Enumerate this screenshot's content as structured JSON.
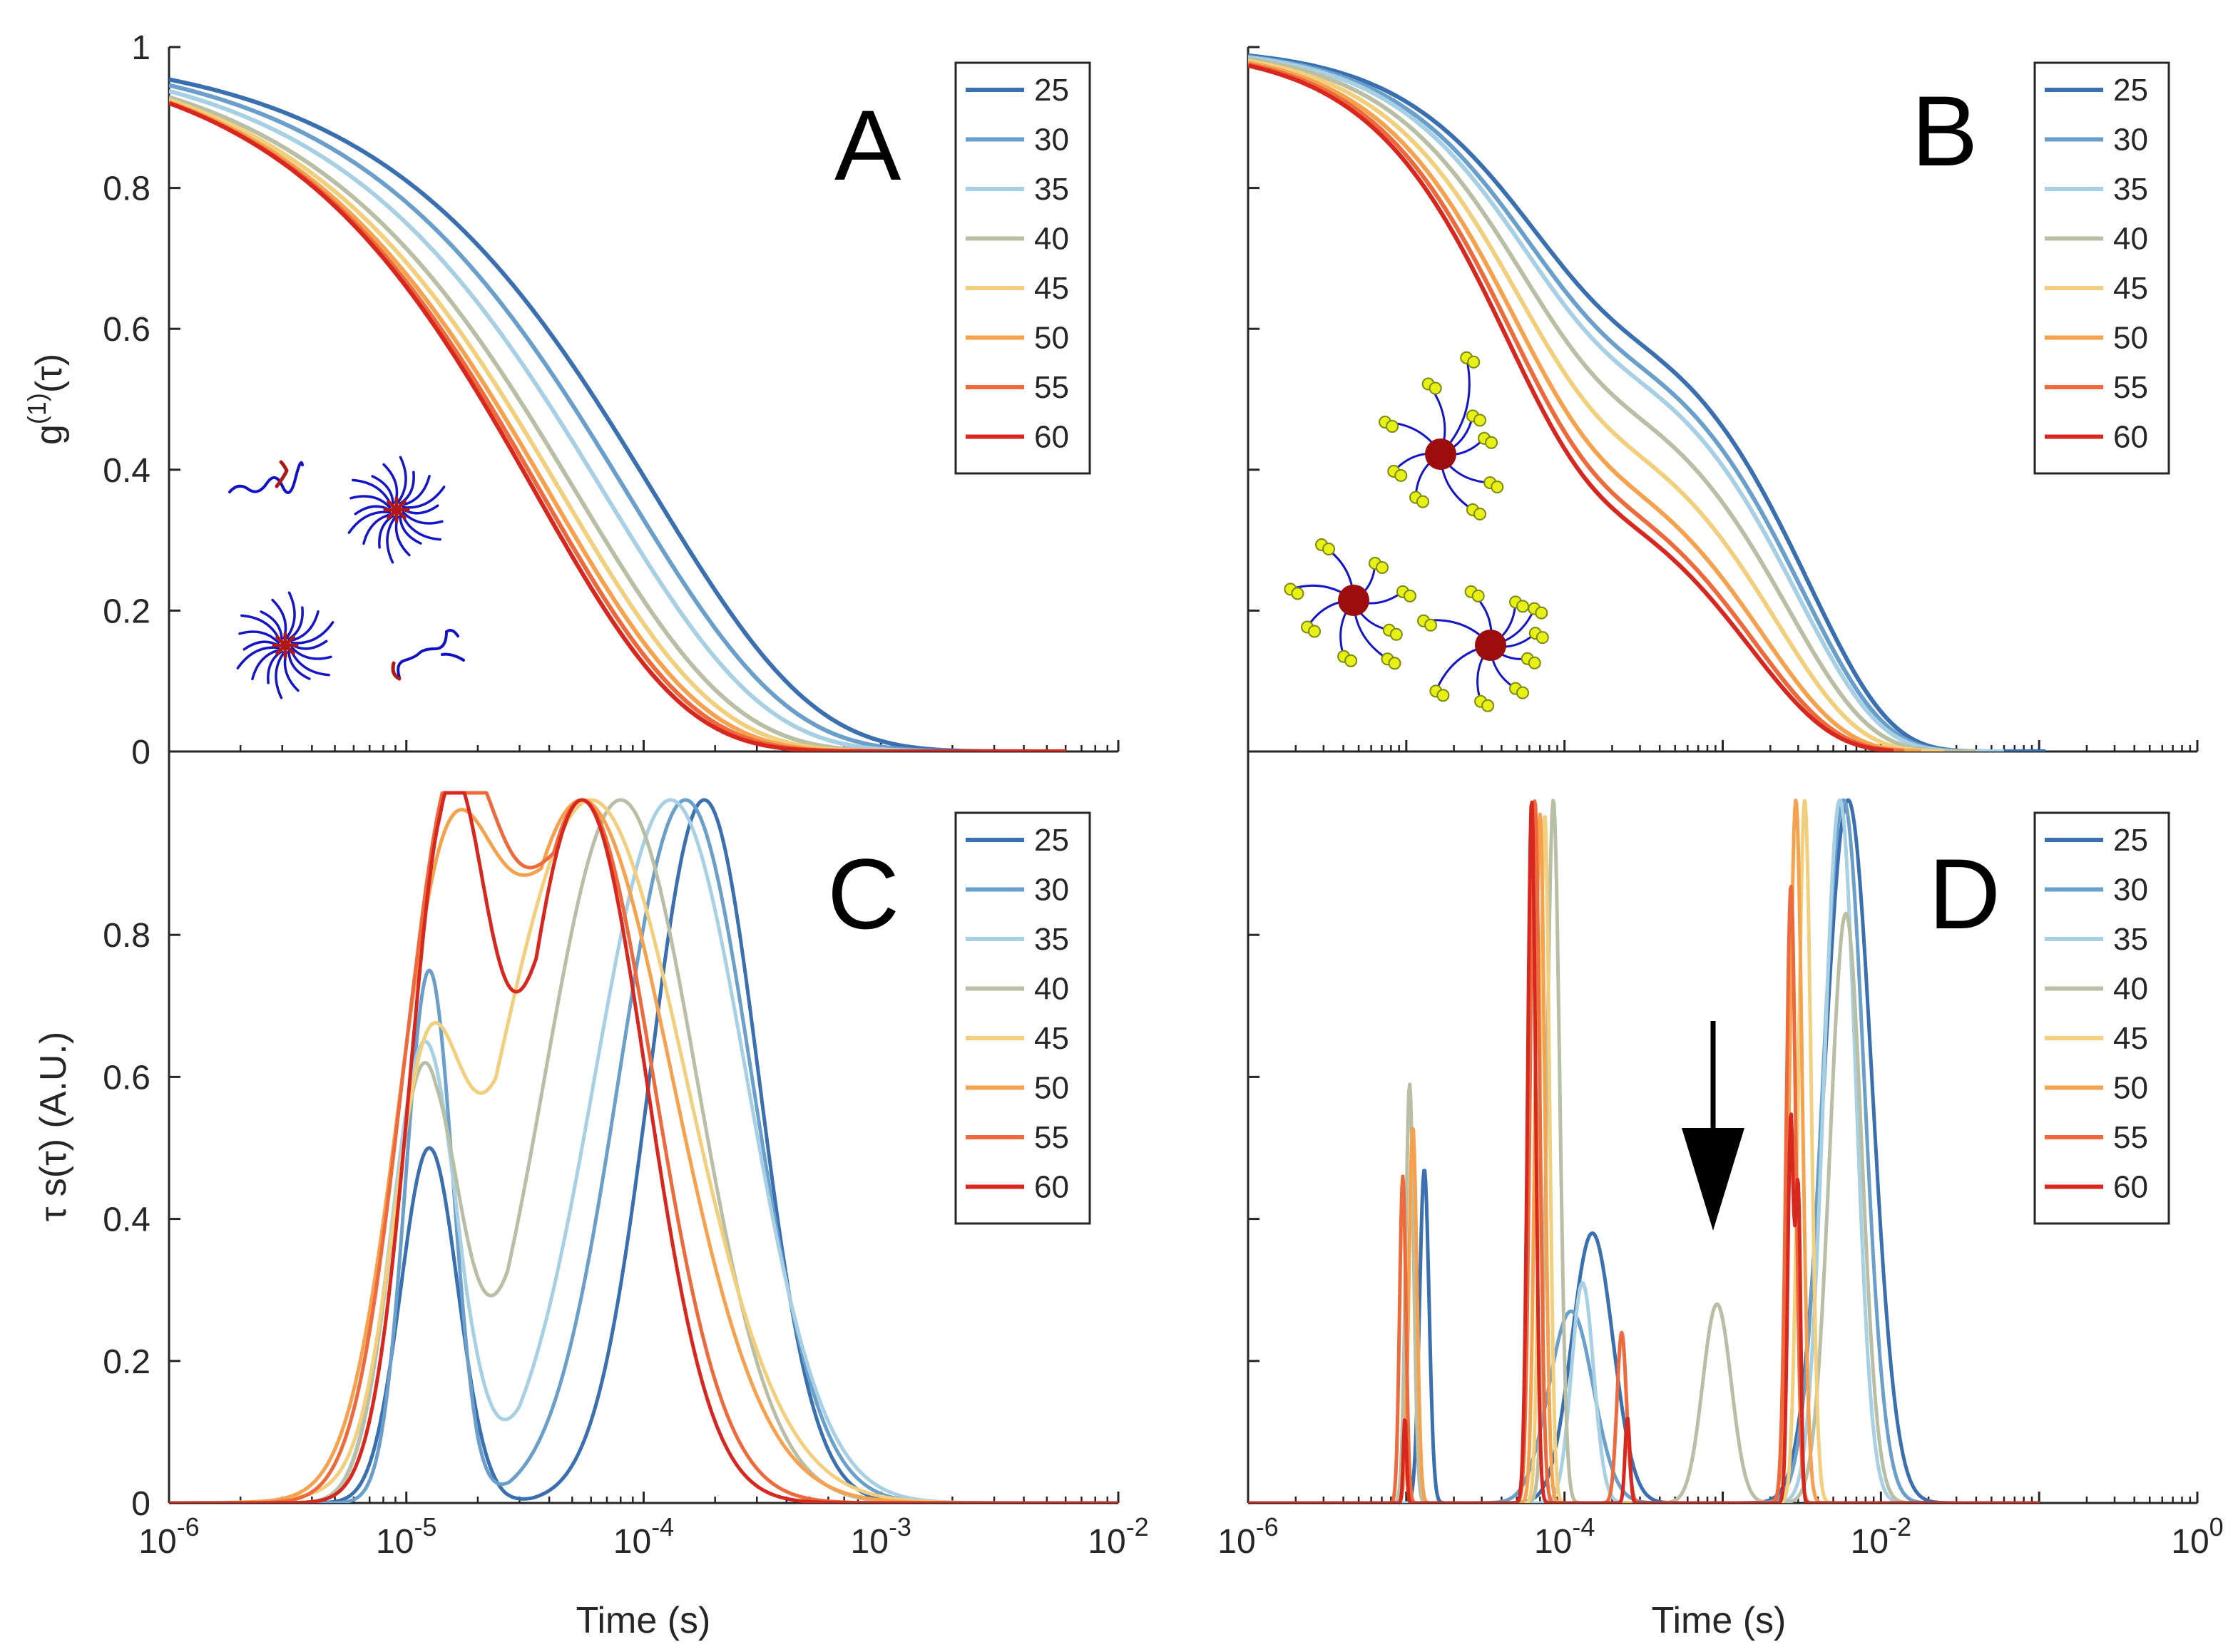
{
  "series_labels": [
    "25",
    "30",
    "35",
    "40",
    "45",
    "50",
    "55",
    "60"
  ],
  "series_colors": [
    "#3a6fb0",
    "#6b9fcb",
    "#a8d0e4",
    "#b9bfa4",
    "#f1cf7c",
    "#f6a14e",
    "#ee6a3c",
    "#d8271f"
  ],
  "chart_data": [
    {
      "panel": "A",
      "type": "line",
      "ylabel_base": "g",
      "ylabel_sup": "(1)",
      "ylabel_rest": "(τ)",
      "xscale": "log",
      "xlim": [
        1e-06,
        0.01
      ],
      "ylim": [
        0,
        1
      ],
      "x_ticks": [
        "10^-6",
        "10^-5",
        "10^-4",
        "10^-3",
        "10^-2"
      ],
      "y_ticks": [
        "0",
        "0.2",
        "0.4",
        "0.6",
        "0.8",
        "1"
      ],
      "legend_position": "top-right",
      "series": [
        {
          "name": "25",
          "tau": [
            0.00011
          ],
          "amp": [
            1.0
          ],
          "beta": 0.65,
          "xmax": 0.006
        },
        {
          "name": "30",
          "tau": [
            8.5e-05
          ],
          "amp": [
            1.0
          ],
          "beta": 0.65,
          "xmax": 0.006
        },
        {
          "name": "35",
          "tau": [
            6.8e-05
          ],
          "amp": [
            1.0
          ],
          "beta": 0.65,
          "xmax": 0.006
        },
        {
          "name": "40",
          "tau": [
            5.2e-05
          ],
          "amp": [
            1.0
          ],
          "beta": 0.66,
          "xmax": 0.006
        },
        {
          "name": "45",
          "tau": [
            4.5e-05
          ],
          "amp": [
            1.0
          ],
          "beta": 0.67,
          "xmax": 0.006
        },
        {
          "name": "50",
          "tau": [
            4e-05
          ],
          "amp": [
            1.0
          ],
          "beta": 0.68,
          "xmax": 0.006
        },
        {
          "name": "55",
          "tau": [
            3.7e-05
          ],
          "amp": [
            1.0
          ],
          "beta": 0.69,
          "xmax": 0.006
        },
        {
          "name": "60",
          "tau": [
            3.5e-05
          ],
          "amp": [
            1.0
          ],
          "beta": 0.7,
          "xmax": 0.006
        }
      ]
    },
    {
      "panel": "B",
      "type": "line",
      "xscale": "log",
      "xlim": [
        1e-06,
        1
      ],
      "ylim": [
        0,
        1
      ],
      "x_ticks": [
        "10^-6",
        "10^-4",
        "10^-2",
        "10^0"
      ],
      "y_ticks": [
        "0",
        "0.2",
        "0.4",
        "0.6",
        "0.8",
        "1"
      ],
      "legend_position": "top-right",
      "series": [
        {
          "name": "25",
          "tau": [
            5.5e-05,
            0.0035
          ],
          "amp": [
            0.35,
            0.65
          ],
          "beta": 0.85,
          "xmax": 0.11
        },
        {
          "name": "30",
          "tau": [
            5.2e-05,
            0.0032
          ],
          "amp": [
            0.38,
            0.62
          ],
          "beta": 0.85,
          "xmax": 0.06
        },
        {
          "name": "35",
          "tau": [
            5e-05,
            0.003
          ],
          "amp": [
            0.4,
            0.6
          ],
          "beta": 0.85,
          "xmax": 0.06
        },
        {
          "name": "40",
          "tau": [
            4.8e-05,
            0.0026
          ],
          "amp": [
            0.45,
            0.55
          ],
          "beta": 0.85,
          "xmax": 0.04
        },
        {
          "name": "45",
          "tau": [
            4.6e-05,
            0.0022
          ],
          "amp": [
            0.5,
            0.5
          ],
          "beta": 0.85,
          "xmax": 0.025
        },
        {
          "name": "50",
          "tau": [
            4.4e-05,
            0.0018
          ],
          "amp": [
            0.55,
            0.45
          ],
          "beta": 0.85,
          "xmax": 0.018
        },
        {
          "name": "55",
          "tau": [
            4.2e-05,
            0.0016
          ],
          "amp": [
            0.58,
            0.42
          ],
          "beta": 0.85,
          "xmax": 0.014
        },
        {
          "name": "60",
          "tau": [
            4e-05,
            0.0015
          ],
          "amp": [
            0.6,
            0.4
          ],
          "beta": 0.85,
          "xmax": 0.012
        }
      ]
    },
    {
      "panel": "C",
      "type": "line",
      "ylabel": "τ s(τ) (A.U.)",
      "xlabel": "Time (s)",
      "xscale": "log",
      "xlim": [
        1e-06,
        0.01
      ],
      "ylim": [
        0,
        1
      ],
      "x_ticks": [
        "10^-6",
        "10^-5",
        "10^-4",
        "10^-3",
        "10^-2"
      ],
      "y_ticks": [
        "0",
        "0.2",
        "0.4",
        "0.6",
        "0.8"
      ],
      "legend_position": "top-right",
      "series": [
        {
          "name": "25",
          "peaks": [
            {
              "x": 1.25e-05,
              "h": 0.5,
              "w": 0.12
            },
            {
              "x": 0.00018,
              "h": 0.99,
              "w": 0.23
            }
          ]
        },
        {
          "name": "30",
          "peaks": [
            {
              "x": 1.25e-05,
              "h": 0.75,
              "w": 0.1
            },
            {
              "x": 0.00015,
              "h": 0.99,
              "w": 0.28
            }
          ]
        },
        {
          "name": "35",
          "peaks": [
            {
              "x": 1.2e-05,
              "h": 0.65,
              "w": 0.14
            },
            {
              "x": 0.00013,
              "h": 0.99,
              "w": 0.32
            }
          ]
        },
        {
          "name": "40",
          "peaks": [
            {
              "x": 1.2e-05,
              "h": 0.62,
              "w": 0.14
            },
            {
              "x": 8e-05,
              "h": 0.99,
              "w": 0.32
            }
          ]
        },
        {
          "name": "45",
          "peaks": [
            {
              "x": 1.2e-05,
              "h": 0.5,
              "w": 0.14
            },
            {
              "x": 6e-05,
              "h": 0.99,
              "w": 0.4
            }
          ]
        },
        {
          "name": "50",
          "peaks": [
            {
              "x": 1.4e-05,
              "h": 0.72,
              "w": 0.2
            },
            {
              "x": 5.5e-05,
              "h": 0.99,
              "w": 0.38
            }
          ]
        },
        {
          "name": "55",
          "peaks": [
            {
              "x": 1.5e-05,
              "h": 0.95,
              "w": 0.2
            },
            {
              "x": 5.5e-05,
              "h": 0.99,
              "w": 0.3
            }
          ]
        },
        {
          "name": "60",
          "peaks": [
            {
              "x": 1.5e-05,
              "h": 0.99,
              "w": 0.16
            },
            {
              "x": 5.5e-05,
              "h": 0.99,
              "w": 0.27
            }
          ]
        }
      ]
    },
    {
      "panel": "D",
      "type": "line",
      "xlabel": "Time (s)",
      "xscale": "log",
      "xlim": [
        1e-06,
        1
      ],
      "ylim": [
        0,
        1
      ],
      "x_ticks": [
        "10^-6",
        "10^-4",
        "10^-2",
        "10^0"
      ],
      "y_ticks": [
        "0",
        "0.2",
        "0.4",
        "0.6",
        "0.8"
      ],
      "legend_position": "top-right",
      "annotation": "down arrow near 1e-3",
      "series": [
        {
          "name": "25",
          "peaks": [
            {
              "x": 1.3e-05,
              "h": 0.47,
              "w": 0.03
            },
            {
              "x": 0.00015,
              "h": 0.38,
              "w": 0.13
            },
            {
              "x": 0.0062,
              "h": 0.99,
              "w": 0.15
            }
          ]
        },
        {
          "name": "30",
          "peaks": [
            {
              "x": 0.00011,
              "h": 0.27,
              "w": 0.14
            },
            {
              "x": 0.0058,
              "h": 0.99,
              "w": 0.13
            }
          ]
        },
        {
          "name": "35",
          "peaks": [
            {
              "x": 0.00013,
              "h": 0.31,
              "w": 0.07
            },
            {
              "x": 0.0055,
              "h": 0.99,
              "w": 0.1
            }
          ]
        },
        {
          "name": "40",
          "peaks": [
            {
              "x": 1.05e-05,
              "h": 0.59,
              "w": 0.025
            },
            {
              "x": 8.5e-05,
              "h": 0.99,
              "w": 0.04
            },
            {
              "x": 0.00092,
              "h": 0.28,
              "w": 0.09
            },
            {
              "x": 0.006,
              "h": 0.83,
              "w": 0.1
            }
          ]
        },
        {
          "name": "45",
          "peaks": [
            {
              "x": 1.1e-05,
              "h": 0.52,
              "w": 0.025
            },
            {
              "x": 7.5e-05,
              "h": 0.97,
              "w": 0.03
            },
            {
              "x": 0.0033,
              "h": 0.99,
              "w": 0.04
            }
          ]
        },
        {
          "name": "50",
          "peaks": [
            {
              "x": 1.1e-05,
              "h": 0.53,
              "w": 0.025
            },
            {
              "x": 7e-05,
              "h": 0.97,
              "w": 0.03
            },
            {
              "x": 0.0029,
              "h": 0.99,
              "w": 0.04
            }
          ]
        },
        {
          "name": "55",
          "peaks": [
            {
              "x": 9.5e-06,
              "h": 0.46,
              "w": 0.02
            },
            {
              "x": 6.5e-05,
              "h": 0.99,
              "w": 0.03
            },
            {
              "x": 0.00023,
              "h": 0.24,
              "w": 0.03
            },
            {
              "x": 0.0027,
              "h": 0.87,
              "w": 0.03
            }
          ]
        },
        {
          "name": "60",
          "peaks": [
            {
              "x": 9.8e-06,
              "h": 0.12,
              "w": 0.01
            },
            {
              "x": 6.2e-05,
              "h": 0.99,
              "w": 0.025
            },
            {
              "x": 0.00025,
              "h": 0.12,
              "w": 0.015
            },
            {
              "x": 0.0027,
              "h": 0.55,
              "w": 0.02
            },
            {
              "x": 0.003,
              "h": 0.45,
              "w": 0.015
            }
          ]
        }
      ]
    }
  ]
}
